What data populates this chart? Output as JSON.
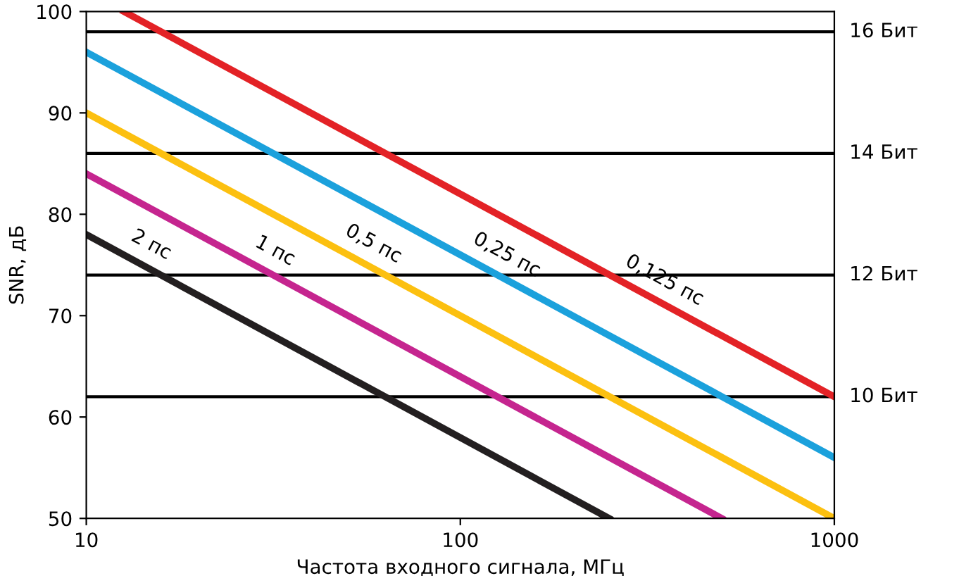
{
  "chart_data": {
    "type": "line",
    "xlabel": "Частота входного сигнала, МГц",
    "ylabel": "SNR, дБ",
    "log": "x",
    "xlim": [
      10,
      1000
    ],
    "ylim": [
      50,
      100
    ],
    "xticks": [
      10,
      100,
      1000
    ],
    "yticks": [
      50,
      60,
      70,
      80,
      90,
      100
    ],
    "grid": false,
    "marker": "none",
    "line_style": "solid",
    "series": [
      {
        "color": "#e32226",
        "x": [
          12.6,
          1000
        ],
        "values": [
          100,
          62
        ]
      },
      {
        "color": "#1ba1dc",
        "x": [
          10,
          1000
        ],
        "values": [
          96,
          56
        ]
      },
      {
        "color": "#fcc010",
        "x": [
          10,
          1000
        ],
        "values": [
          90,
          50
        ]
      },
      {
        "color": "#c5258f",
        "x": [
          10,
          500
        ],
        "values": [
          84,
          50
        ]
      },
      {
        "color": "#231f20",
        "x": [
          10,
          250
        ],
        "values": [
          78,
          50
        ]
      }
    ],
    "ref_lines": [
      {
        "axis": "y",
        "value": 98,
        "label": "16 Бит",
        "color": "#000000"
      },
      {
        "axis": "y",
        "value": 86,
        "label": "14 Бит",
        "color": "#000000"
      },
      {
        "axis": "y",
        "value": 74,
        "label": "12 Бит",
        "color": "#000000"
      },
      {
        "axis": "y",
        "value": 62,
        "label": "10 Бит",
        "color": "#000000"
      }
    ],
    "annotations": [
      {
        "text": "2 пс",
        "x": 14,
        "y": 75.1
      },
      {
        "text": "1 пс",
        "x": 30,
        "y": 74.5
      },
      {
        "text": "0,5 пс",
        "x": 55,
        "y": 75.2
      },
      {
        "text": "0,25 пс",
        "x": 125,
        "y": 74.1
      },
      {
        "text": "0,125 пс",
        "x": 330,
        "y": 71.6
      }
    ]
  }
}
